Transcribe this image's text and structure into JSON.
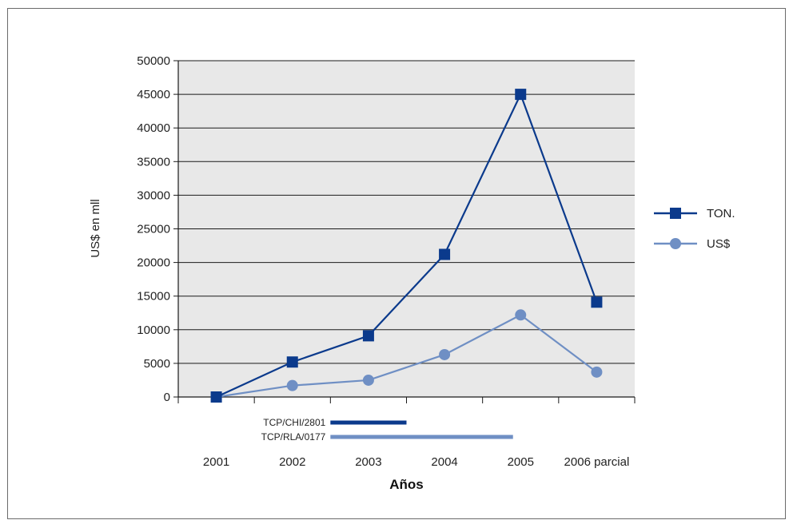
{
  "chart_data": {
    "type": "line",
    "categories": [
      "2001",
      "2002",
      "2003",
      "2004",
      "2005",
      "2006 parcial"
    ],
    "series": [
      {
        "name": "TON.",
        "values": [
          0,
          5200,
          9100,
          21200,
          45000,
          14100
        ],
        "color": "#0b3a8c",
        "marker": "square"
      },
      {
        "name": "US$",
        "values": [
          0,
          1700,
          2500,
          6300,
          12200,
          3700
        ],
        "color": "#6f8fc4",
        "marker": "circle"
      }
    ],
    "xlabel": "Años",
    "ylabel": "US$ en mll",
    "ylim": [
      0,
      50000
    ],
    "yticks": [
      0,
      5000,
      10000,
      15000,
      20000,
      25000,
      30000,
      35000,
      40000,
      45000,
      50000
    ],
    "grid": true,
    "legend": "right",
    "plot_background": "#e8e8e8",
    "projects": [
      {
        "label": "TCP/CHI/2801",
        "start": 2002.5,
        "end": 2003.5,
        "color": "#0b3a8c"
      },
      {
        "label": "TCP/RLA/0177",
        "start": 2002.5,
        "end": 2004.9,
        "color": "#6f8fc4"
      }
    ]
  }
}
